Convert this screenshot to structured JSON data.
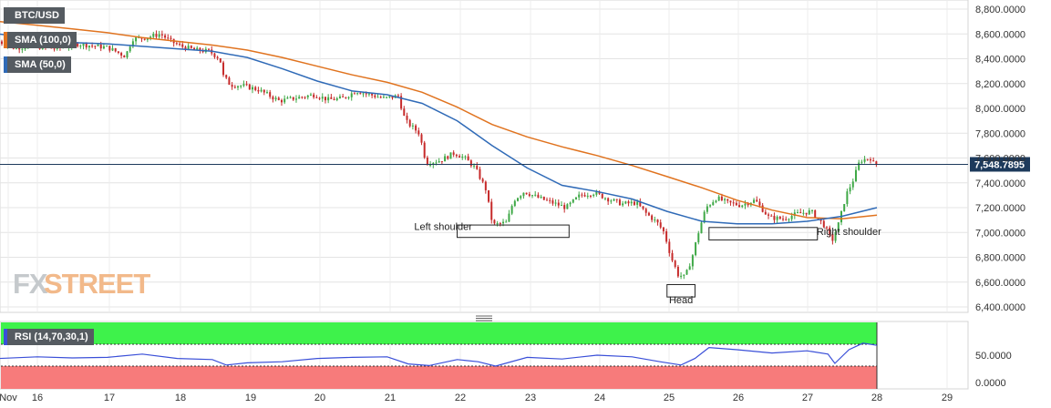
{
  "symbol": "BTC/USD",
  "legend": {
    "sma100": {
      "label": "SMA (100,0)",
      "color": "#e0731f"
    },
    "sma50": {
      "label": "SMA (50,0)",
      "color": "#2f6ab7"
    },
    "rsi": {
      "label": "RSI (14,70,30,1)",
      "color": "#3a4fd8"
    }
  },
  "price_tag": "7,548.7895",
  "price_level": 7548.79,
  "watermark": {
    "fx": "FX",
    "street": "STREET"
  },
  "annotations": [
    {
      "id": "left",
      "label": "Left shoulder"
    },
    {
      "id": "head",
      "label": "Head"
    },
    {
      "id": "right",
      "label": "Right shoulder"
    }
  ],
  "x_labels": [
    "Nov",
    "16",
    "17",
    "18",
    "19",
    "20",
    "21",
    "22",
    "23",
    "24",
    "25",
    "26",
    "27",
    "28",
    "29"
  ],
  "colors": {
    "up": "#3ea846",
    "down": "#c62a2a",
    "rsi_overbought": "#3ef24b",
    "rsi_oversold": "#f77b7b",
    "panel_border": "#c8c8c8"
  },
  "chart_data": [
    {
      "type": "line",
      "title": "BTC/USD",
      "x_range": [
        15.45,
        29.35
      ],
      "ylim": [
        6400,
        8800
      ],
      "y_ticks": [
        6400,
        6600,
        6800,
        7000,
        7200,
        7400,
        7600,
        7800,
        8000,
        8200,
        8400,
        8600,
        8800
      ],
      "y_tick_labels": [
        "6,400.0000",
        "6,600.0000",
        "6,800.0000",
        "7,000.0000",
        "7,200.0000",
        "7,400.0000",
        "7,600.0000",
        "7,800.0000",
        "8,000.0000",
        "8,200.0000",
        "8,400.0000",
        "8,600.0000",
        "8,800.0000"
      ],
      "price_path": [
        {
          "x": 15.45,
          "y": 8550
        },
        {
          "x": 15.7,
          "y": 8490
        },
        {
          "x": 16.0,
          "y": 8500
        },
        {
          "x": 16.3,
          "y": 8480
        },
        {
          "x": 16.6,
          "y": 8520
        },
        {
          "x": 16.9,
          "y": 8500
        },
        {
          "x": 17.05,
          "y": 8490
        },
        {
          "x": 17.3,
          "y": 8420
        },
        {
          "x": 17.4,
          "y": 8560
        },
        {
          "x": 17.6,
          "y": 8570
        },
        {
          "x": 17.8,
          "y": 8600
        },
        {
          "x": 17.95,
          "y": 8540
        },
        {
          "x": 18.1,
          "y": 8500
        },
        {
          "x": 18.3,
          "y": 8470
        },
        {
          "x": 18.5,
          "y": 8460
        },
        {
          "x": 18.65,
          "y": 8400
        },
        {
          "x": 18.7,
          "y": 8260
        },
        {
          "x": 18.8,
          "y": 8190
        },
        {
          "x": 19.0,
          "y": 8180
        },
        {
          "x": 19.2,
          "y": 8150
        },
        {
          "x": 19.5,
          "y": 8060
        },
        {
          "x": 19.8,
          "y": 8090
        },
        {
          "x": 20.0,
          "y": 8110
        },
        {
          "x": 20.2,
          "y": 8070
        },
        {
          "x": 20.4,
          "y": 8080
        },
        {
          "x": 20.6,
          "y": 8140
        },
        {
          "x": 20.8,
          "y": 8110
        },
        {
          "x": 21.0,
          "y": 8080
        },
        {
          "x": 21.2,
          "y": 8100
        },
        {
          "x": 21.3,
          "y": 7900
        },
        {
          "x": 21.5,
          "y": 7800
        },
        {
          "x": 21.6,
          "y": 7560
        },
        {
          "x": 21.8,
          "y": 7580
        },
        {
          "x": 22.0,
          "y": 7640
        },
        {
          "x": 22.15,
          "y": 7600
        },
        {
          "x": 22.3,
          "y": 7520
        },
        {
          "x": 22.45,
          "y": 7350
        },
        {
          "x": 22.55,
          "y": 7060
        },
        {
          "x": 22.75,
          "y": 7080
        },
        {
          "x": 22.85,
          "y": 7260
        },
        {
          "x": 23.0,
          "y": 7330
        },
        {
          "x": 23.2,
          "y": 7280
        },
        {
          "x": 23.4,
          "y": 7240
        },
        {
          "x": 23.6,
          "y": 7200
        },
        {
          "x": 23.8,
          "y": 7300
        },
        {
          "x": 24.0,
          "y": 7320
        },
        {
          "x": 24.2,
          "y": 7270
        },
        {
          "x": 24.4,
          "y": 7230
        },
        {
          "x": 24.6,
          "y": 7240
        },
        {
          "x": 24.75,
          "y": 7150
        },
        {
          "x": 24.9,
          "y": 7080
        },
        {
          "x": 25.0,
          "y": 7000
        },
        {
          "x": 25.1,
          "y": 6800
        },
        {
          "x": 25.2,
          "y": 6660
        },
        {
          "x": 25.3,
          "y": 6640
        },
        {
          "x": 25.4,
          "y": 6800
        },
        {
          "x": 25.5,
          "y": 7020
        },
        {
          "x": 25.6,
          "y": 7200
        },
        {
          "x": 25.75,
          "y": 7280
        },
        {
          "x": 25.9,
          "y": 7240
        },
        {
          "x": 26.1,
          "y": 7220
        },
        {
          "x": 26.3,
          "y": 7260
        },
        {
          "x": 26.5,
          "y": 7120
        },
        {
          "x": 26.7,
          "y": 7110
        },
        {
          "x": 26.9,
          "y": 7150
        },
        {
          "x": 27.1,
          "y": 7170
        },
        {
          "x": 27.3,
          "y": 7050
        },
        {
          "x": 27.4,
          "y": 6930
        },
        {
          "x": 27.5,
          "y": 7080
        },
        {
          "x": 27.6,
          "y": 7300
        },
        {
          "x": 27.7,
          "y": 7420
        },
        {
          "x": 27.8,
          "y": 7580
        },
        {
          "x": 27.95,
          "y": 7600
        },
        {
          "x": 28.0,
          "y": 7548
        }
      ],
      "series": [
        {
          "name": "SMA (100,0)",
          "color": "#e0731f",
          "points": [
            {
              "x": 15.45,
              "y": 8700
            },
            {
              "x": 16.0,
              "y": 8670
            },
            {
              "x": 16.5,
              "y": 8640
            },
            {
              "x": 17.0,
              "y": 8610
            },
            {
              "x": 17.5,
              "y": 8570
            },
            {
              "x": 18.0,
              "y": 8540
            },
            {
              "x": 18.5,
              "y": 8510
            },
            {
              "x": 19.0,
              "y": 8470
            },
            {
              "x": 19.5,
              "y": 8410
            },
            {
              "x": 20.0,
              "y": 8340
            },
            {
              "x": 20.5,
              "y": 8270
            },
            {
              "x": 21.0,
              "y": 8210
            },
            {
              "x": 21.5,
              "y": 8130
            },
            {
              "x": 22.0,
              "y": 8010
            },
            {
              "x": 22.5,
              "y": 7870
            },
            {
              "x": 23.0,
              "y": 7770
            },
            {
              "x": 23.5,
              "y": 7690
            },
            {
              "x": 24.0,
              "y": 7620
            },
            {
              "x": 24.5,
              "y": 7540
            },
            {
              "x": 25.0,
              "y": 7450
            },
            {
              "x": 25.5,
              "y": 7360
            },
            {
              "x": 26.0,
              "y": 7260
            },
            {
              "x": 26.5,
              "y": 7180
            },
            {
              "x": 27.0,
              "y": 7120
            },
            {
              "x": 27.5,
              "y": 7110
            },
            {
              "x": 28.0,
              "y": 7140
            }
          ]
        },
        {
          "name": "SMA (50,0)",
          "color": "#2f6ab7",
          "points": [
            {
              "x": 15.45,
              "y": 8600
            },
            {
              "x": 16.0,
              "y": 8560
            },
            {
              "x": 16.5,
              "y": 8530
            },
            {
              "x": 17.0,
              "y": 8520
            },
            {
              "x": 17.5,
              "y": 8500
            },
            {
              "x": 18.0,
              "y": 8480
            },
            {
              "x": 18.5,
              "y": 8460
            },
            {
              "x": 19.0,
              "y": 8410
            },
            {
              "x": 19.5,
              "y": 8320
            },
            {
              "x": 20.0,
              "y": 8220
            },
            {
              "x": 20.5,
              "y": 8140
            },
            {
              "x": 21.0,
              "y": 8110
            },
            {
              "x": 21.5,
              "y": 8040
            },
            {
              "x": 22.0,
              "y": 7900
            },
            {
              "x": 22.5,
              "y": 7700
            },
            {
              "x": 23.0,
              "y": 7520
            },
            {
              "x": 23.5,
              "y": 7380
            },
            {
              "x": 24.0,
              "y": 7330
            },
            {
              "x": 24.5,
              "y": 7270
            },
            {
              "x": 25.0,
              "y": 7170
            },
            {
              "x": 25.5,
              "y": 7090
            },
            {
              "x": 26.0,
              "y": 7070
            },
            {
              "x": 26.5,
              "y": 7070
            },
            {
              "x": 27.0,
              "y": 7090
            },
            {
              "x": 27.5,
              "y": 7130
            },
            {
              "x": 28.0,
              "y": 7200
            }
          ]
        }
      ],
      "last_price": 7548.7895
    },
    {
      "type": "line",
      "title": "RSI (14,70,30,1)",
      "ylim": [
        0,
        100
      ],
      "y_ticks": [
        0,
        50
      ],
      "y_tick_labels": [
        "0.0000",
        "50.0000"
      ],
      "overbought": 70,
      "oversold": 30,
      "series": [
        {
          "name": "RSI (14,70,30,1)",
          "color": "#3a4fd8",
          "points": [
            {
              "x": 15.45,
              "y": 44
            },
            {
              "x": 16.0,
              "y": 47
            },
            {
              "x": 16.5,
              "y": 45
            },
            {
              "x": 17.0,
              "y": 46
            },
            {
              "x": 17.5,
              "y": 52
            },
            {
              "x": 18.0,
              "y": 44
            },
            {
              "x": 18.5,
              "y": 42
            },
            {
              "x": 18.7,
              "y": 32
            },
            {
              "x": 19.0,
              "y": 36
            },
            {
              "x": 19.5,
              "y": 38
            },
            {
              "x": 20.0,
              "y": 44
            },
            {
              "x": 20.5,
              "y": 46
            },
            {
              "x": 21.0,
              "y": 47
            },
            {
              "x": 21.3,
              "y": 34
            },
            {
              "x": 21.6,
              "y": 31
            },
            {
              "x": 22.0,
              "y": 42
            },
            {
              "x": 22.3,
              "y": 38
            },
            {
              "x": 22.55,
              "y": 30
            },
            {
              "x": 23.0,
              "y": 46
            },
            {
              "x": 23.5,
              "y": 43
            },
            {
              "x": 24.0,
              "y": 50
            },
            {
              "x": 24.5,
              "y": 47
            },
            {
              "x": 24.9,
              "y": 38
            },
            {
              "x": 25.2,
              "y": 32
            },
            {
              "x": 25.4,
              "y": 44
            },
            {
              "x": 25.6,
              "y": 64
            },
            {
              "x": 26.0,
              "y": 60
            },
            {
              "x": 26.5,
              "y": 54
            },
            {
              "x": 27.0,
              "y": 58
            },
            {
              "x": 27.3,
              "y": 52
            },
            {
              "x": 27.4,
              "y": 35
            },
            {
              "x": 27.6,
              "y": 60
            },
            {
              "x": 27.8,
              "y": 72
            },
            {
              "x": 28.0,
              "y": 68
            }
          ]
        }
      ]
    }
  ]
}
